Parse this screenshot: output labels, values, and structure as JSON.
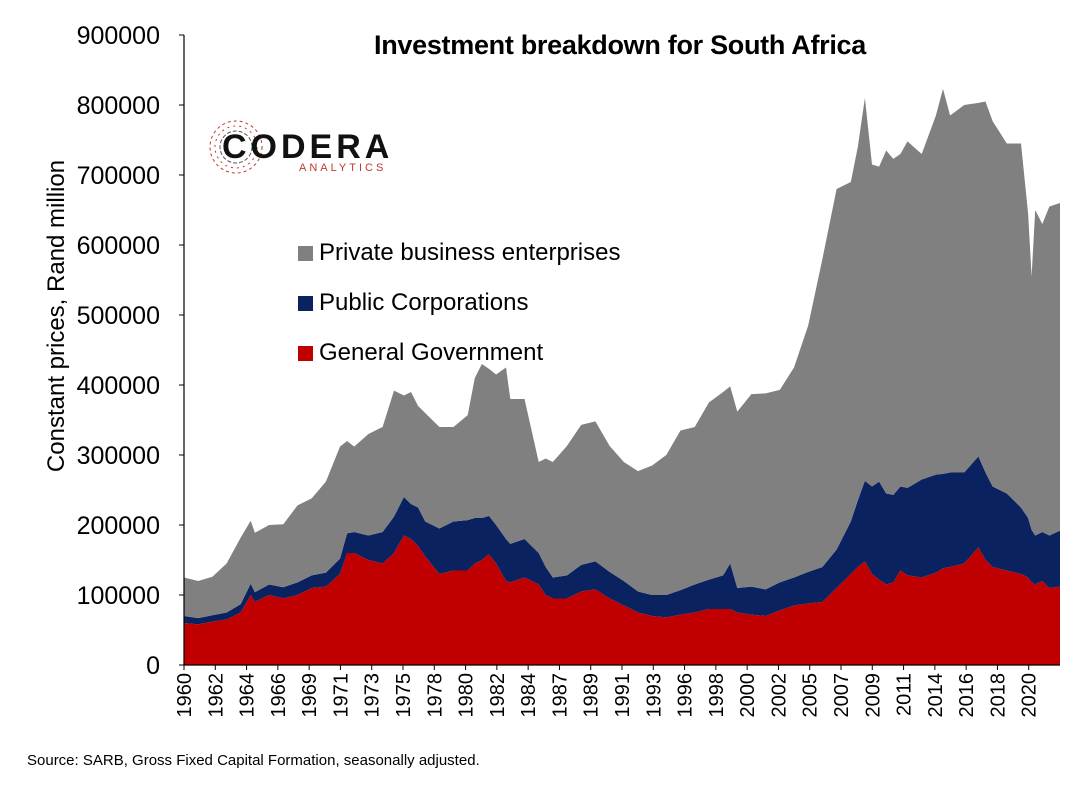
{
  "title": "Investment breakdown for South Africa",
  "source": "Source: SARB, Gross Fixed Capital Formation, seasonally adjusted.",
  "logo": {
    "word": "CODERA",
    "sub": "ANALYTICS"
  },
  "colors": {
    "private": "#808080",
    "public": "#0b2260",
    "government": "#c00000"
  },
  "chart_data": {
    "type": "area",
    "stacked": true,
    "ylabel": "Constant prices, Rand million",
    "xlabel": "",
    "ylim": [
      0,
      900000
    ],
    "yticks": [
      0,
      100000,
      200000,
      300000,
      400000,
      500000,
      600000,
      700000,
      800000,
      900000
    ],
    "xlim": [
      1960.0,
      2021.75
    ],
    "xtick_labels": [
      "1960",
      "1962",
      "1964",
      "1966",
      "1969",
      "1971",
      "1973",
      "1975",
      "1978",
      "1980",
      "1982",
      "1984",
      "1987",
      "1989",
      "1991",
      "1993",
      "1996",
      "1998",
      "2000",
      "2002",
      "2005",
      "2007",
      "2009",
      "2011",
      "2014",
      "2016",
      "2018",
      "2020"
    ],
    "legend_position": "upper-left",
    "series_order_bottom_to_top": [
      "General Government",
      "Public Corporations",
      "Private business enterprises"
    ],
    "x": [
      1960.0,
      1961.0,
      1962.0,
      1963.0,
      1964.0,
      1964.7,
      1965.0,
      1966.0,
      1967.0,
      1968.0,
      1969.0,
      1970.0,
      1971.0,
      1971.5,
      1972.0,
      1973.0,
      1974.0,
      1974.8,
      1975.5,
      1976.0,
      1976.5,
      1977.0,
      1978.0,
      1979.0,
      1980.0,
      1980.5,
      1981.0,
      1981.5,
      1982.0,
      1982.7,
      1983.0,
      1984.0,
      1985.0,
      1985.5,
      1986.0,
      1987.0,
      1988.0,
      1989.0,
      1990.0,
      1991.0,
      1992.0,
      1993.0,
      1994.0,
      1995.0,
      1996.0,
      1997.0,
      1998.0,
      1998.5,
      1999.0,
      2000.0,
      2001.0,
      2002.0,
      2003.0,
      2004.0,
      2005.0,
      2006.0,
      2007.0,
      2007.5,
      2008.0,
      2008.5,
      2009.0,
      2009.5,
      2010.0,
      2010.5,
      2011.0,
      2012.0,
      2013.0,
      2013.5,
      2014.0,
      2015.0,
      2016.0,
      2016.5,
      2017.0,
      2018.0,
      2019.0,
      2019.5,
      2019.75,
      2020.0,
      2020.5,
      2021.0,
      2021.75
    ],
    "series": [
      {
        "name": "General Government",
        "values": [
          60000,
          58000,
          62000,
          65000,
          75000,
          100000,
          90000,
          100000,
          95000,
          100000,
          110000,
          112000,
          130000,
          160000,
          160000,
          150000,
          145000,
          160000,
          185000,
          180000,
          170000,
          155000,
          130000,
          135000,
          135000,
          145000,
          150000,
          158000,
          145000,
          120000,
          118000,
          125000,
          115000,
          100000,
          95000,
          95000,
          105000,
          108000,
          95000,
          85000,
          75000,
          70000,
          68000,
          72000,
          75000,
          80000,
          80000,
          80000,
          75000,
          72000,
          70000,
          78000,
          85000,
          88000,
          90000,
          110000,
          130000,
          140000,
          148000,
          130000,
          122000,
          115000,
          118000,
          135000,
          128000,
          125000,
          132000,
          138000,
          140000,
          145000,
          168000,
          150000,
          140000,
          135000,
          130000,
          125000,
          118000,
          115000,
          120000,
          110000,
          112000
        ]
      },
      {
        "name": "Public Corporations",
        "values": [
          10000,
          9000,
          9000,
          10000,
          12000,
          16000,
          14000,
          15000,
          16000,
          18000,
          18000,
          20000,
          22000,
          28000,
          30000,
          35000,
          45000,
          52000,
          55000,
          50000,
          55000,
          50000,
          65000,
          70000,
          72000,
          65000,
          60000,
          55000,
          55000,
          60000,
          55000,
          55000,
          45000,
          40000,
          30000,
          33000,
          38000,
          40000,
          38000,
          35000,
          30000,
          30000,
          32000,
          35000,
          40000,
          42000,
          48000,
          65000,
          35000,
          40000,
          38000,
          40000,
          40000,
          45000,
          50000,
          55000,
          75000,
          95000,
          115000,
          125000,
          140000,
          130000,
          125000,
          120000,
          125000,
          140000,
          140000,
          135000,
          135000,
          130000,
          130000,
          125000,
          115000,
          110000,
          95000,
          85000,
          75000,
          70000,
          70000,
          75000,
          80000
        ]
      },
      {
        "name": "Private business enterprises",
        "values": [
          55000,
          53000,
          55000,
          70000,
          95000,
          90000,
          85000,
          85000,
          90000,
          110000,
          110000,
          130000,
          160000,
          132000,
          122000,
          145000,
          150000,
          180000,
          145000,
          160000,
          145000,
          155000,
          145000,
          135000,
          150000,
          200000,
          220000,
          210000,
          215000,
          245000,
          207000,
          200000,
          130000,
          155000,
          165000,
          185000,
          200000,
          200000,
          180000,
          170000,
          172000,
          185000,
          200000,
          228000,
          225000,
          253000,
          262000,
          253000,
          252000,
          275000,
          280000,
          275000,
          300000,
          352000,
          440000,
          515000,
          485000,
          505000,
          547000,
          460000,
          450000,
          490000,
          480000,
          475000,
          495000,
          465000,
          513000,
          550000,
          510000,
          525000,
          505000,
          530000,
          522000,
          500000,
          520000,
          435000,
          362000,
          465000,
          440000,
          470000,
          468000
        ]
      }
    ]
  }
}
